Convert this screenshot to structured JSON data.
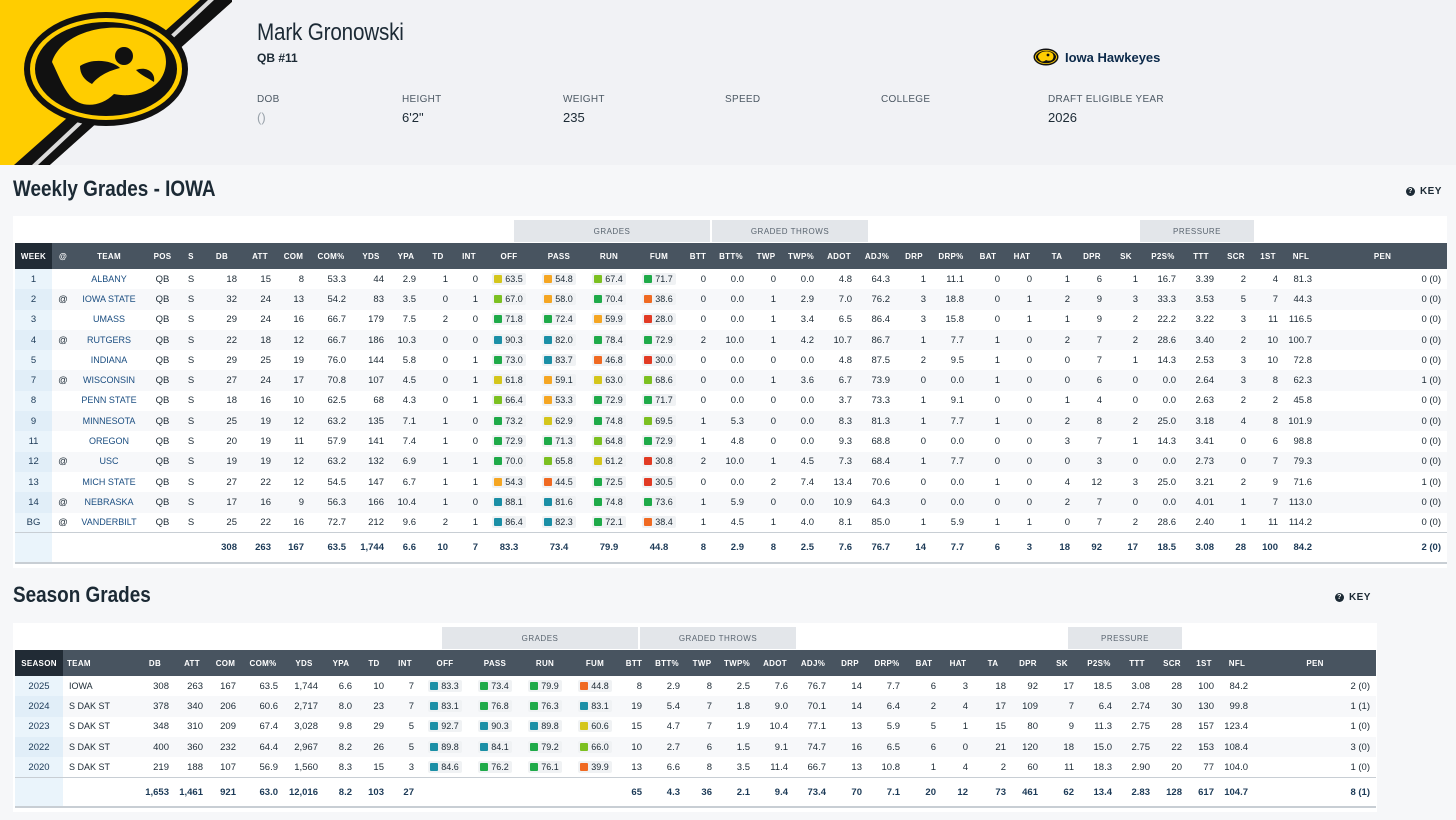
{
  "player": {
    "name": "Mark Gronowski",
    "position": "QB #11",
    "team": "Iowa Hawkeyes",
    "bio": [
      {
        "label": "DOB",
        "value": "()"
      },
      {
        "label": "HEIGHT",
        "value": "6'2\""
      },
      {
        "label": "WEIGHT",
        "value": "235"
      },
      {
        "label": "SPEED",
        "value": ""
      },
      {
        "label": "COLLEGE",
        "value": ""
      },
      {
        "label": "DRAFT ELIGIBLE YEAR",
        "value": "2026"
      }
    ]
  },
  "colors": {
    "brand_yellow": "#ffcd00",
    "brand_black": "#111111",
    "header_row": "#485460",
    "grade_elite": "#1b8fa6",
    "grade_high": "#1faa49",
    "grade_good": "#7cc021",
    "grade_avg": "#d4c61c",
    "grade_below": "#f5a623",
    "grade_low": "#f06a22",
    "grade_poor": "#e23b24"
  },
  "weekly": {
    "title": "Weekly Grades - IOWA",
    "key_label": "KEY",
    "groups": [
      "GRADES",
      "GRADED THROWS",
      "PRESSURE"
    ],
    "columns": [
      "WEEK",
      "@",
      "TEAM",
      "POS",
      "S",
      "DB",
      "ATT",
      "COM",
      "COM%",
      "YDS",
      "YPA",
      "TD",
      "INT",
      "OFF",
      "PASS",
      "RUN",
      "FUM",
      "BTT",
      "BTT%",
      "TWP",
      "TWP%",
      "ADOT",
      "ADJ%",
      "DRP",
      "DRP%",
      "BAT",
      "HAT",
      "TA",
      "DPR",
      "SK",
      "P2S%",
      "TTT",
      "SCR",
      "1ST",
      "NFL",
      "PEN"
    ],
    "rows": [
      [
        "1",
        "",
        "ALBANY",
        "QB",
        "S",
        "18",
        "15",
        "8",
        "53.3",
        "44",
        "2.9",
        "1",
        "0",
        "63.5",
        "54.8",
        "67.4",
        "71.7",
        "0",
        "0.0",
        "0",
        "0.0",
        "4.8",
        "64.3",
        "1",
        "11.1",
        "0",
        "0",
        "1",
        "6",
        "1",
        "16.7",
        "3.39",
        "2",
        "4",
        "81.3",
        "0 (0)"
      ],
      [
        "2",
        "@",
        "IOWA STATE",
        "QB",
        "S",
        "32",
        "24",
        "13",
        "54.2",
        "83",
        "3.5",
        "0",
        "1",
        "67.0",
        "58.0",
        "70.4",
        "38.6",
        "0",
        "0.0",
        "1",
        "2.9",
        "7.0",
        "76.2",
        "3",
        "18.8",
        "0",
        "1",
        "2",
        "9",
        "3",
        "33.3",
        "3.53",
        "5",
        "7",
        "44.3",
        "0 (0)"
      ],
      [
        "3",
        "",
        "UMASS",
        "QB",
        "S",
        "29",
        "24",
        "16",
        "66.7",
        "179",
        "7.5",
        "2",
        "0",
        "71.8",
        "72.4",
        "59.9",
        "28.0",
        "0",
        "0.0",
        "1",
        "3.4",
        "6.5",
        "86.4",
        "3",
        "15.8",
        "0",
        "1",
        "1",
        "9",
        "2",
        "22.2",
        "3.22",
        "3",
        "11",
        "116.5",
        "0 (0)"
      ],
      [
        "4",
        "@",
        "RUTGERS",
        "QB",
        "S",
        "22",
        "18",
        "12",
        "66.7",
        "186",
        "10.3",
        "0",
        "0",
        "90.3",
        "82.0",
        "78.4",
        "72.9",
        "2",
        "10.0",
        "1",
        "4.2",
        "10.7",
        "86.7",
        "1",
        "7.7",
        "1",
        "0",
        "2",
        "7",
        "2",
        "28.6",
        "3.40",
        "2",
        "10",
        "100.7",
        "0 (0)"
      ],
      [
        "5",
        "",
        "INDIANA",
        "QB",
        "S",
        "29",
        "25",
        "19",
        "76.0",
        "144",
        "5.8",
        "0",
        "1",
        "73.0",
        "83.7",
        "46.8",
        "30.0",
        "0",
        "0.0",
        "0",
        "0.0",
        "4.8",
        "87.5",
        "2",
        "9.5",
        "1",
        "0",
        "0",
        "7",
        "1",
        "14.3",
        "2.53",
        "3",
        "10",
        "72.8",
        "0 (0)"
      ],
      [
        "7",
        "@",
        "WISCONSIN",
        "QB",
        "S",
        "27",
        "24",
        "17",
        "70.8",
        "107",
        "4.5",
        "0",
        "1",
        "61.8",
        "59.1",
        "63.0",
        "68.6",
        "0",
        "0.0",
        "1",
        "3.6",
        "6.7",
        "73.9",
        "0",
        "0.0",
        "1",
        "0",
        "0",
        "6",
        "0",
        "0.0",
        "2.64",
        "3",
        "8",
        "62.3",
        "1 (0)"
      ],
      [
        "8",
        "",
        "PENN STATE",
        "QB",
        "S",
        "18",
        "16",
        "10",
        "62.5",
        "68",
        "4.3",
        "0",
        "1",
        "66.4",
        "53.3",
        "72.9",
        "71.7",
        "0",
        "0.0",
        "0",
        "0.0",
        "3.7",
        "73.3",
        "1",
        "9.1",
        "0",
        "0",
        "1",
        "4",
        "0",
        "0.0",
        "2.63",
        "2",
        "2",
        "45.8",
        "0 (0)"
      ],
      [
        "9",
        "",
        "MINNESOTA",
        "QB",
        "S",
        "25",
        "19",
        "12",
        "63.2",
        "135",
        "7.1",
        "1",
        "0",
        "73.2",
        "62.9",
        "74.8",
        "69.5",
        "1",
        "5.3",
        "0",
        "0.0",
        "8.3",
        "81.3",
        "1",
        "7.7",
        "1",
        "0",
        "2",
        "8",
        "2",
        "25.0",
        "3.18",
        "4",
        "8",
        "101.9",
        "0 (0)"
      ],
      [
        "11",
        "",
        "OREGON",
        "QB",
        "S",
        "20",
        "19",
        "11",
        "57.9",
        "141",
        "7.4",
        "1",
        "0",
        "72.9",
        "71.3",
        "64.8",
        "72.9",
        "1",
        "4.8",
        "0",
        "0.0",
        "9.3",
        "68.8",
        "0",
        "0.0",
        "0",
        "0",
        "3",
        "7",
        "1",
        "14.3",
        "3.41",
        "0",
        "6",
        "98.8",
        "0 (0)"
      ],
      [
        "12",
        "@",
        "USC",
        "QB",
        "S",
        "19",
        "19",
        "12",
        "63.2",
        "132",
        "6.9",
        "1",
        "1",
        "70.0",
        "65.8",
        "61.2",
        "30.8",
        "2",
        "10.0",
        "1",
        "4.5",
        "7.3",
        "68.4",
        "1",
        "7.7",
        "0",
        "0",
        "0",
        "3",
        "0",
        "0.0",
        "2.73",
        "0",
        "7",
        "79.3",
        "0 (0)"
      ],
      [
        "13",
        "",
        "MICH STATE",
        "QB",
        "S",
        "27",
        "22",
        "12",
        "54.5",
        "147",
        "6.7",
        "1",
        "1",
        "54.3",
        "44.5",
        "72.5",
        "30.5",
        "0",
        "0.0",
        "2",
        "7.4",
        "13.4",
        "70.6",
        "0",
        "0.0",
        "1",
        "0",
        "4",
        "12",
        "3",
        "25.0",
        "3.21",
        "2",
        "9",
        "71.6",
        "1 (0)"
      ],
      [
        "14",
        "@",
        "NEBRASKA",
        "QB",
        "S",
        "17",
        "16",
        "9",
        "56.3",
        "166",
        "10.4",
        "1",
        "0",
        "88.1",
        "81.6",
        "74.8",
        "73.6",
        "1",
        "5.9",
        "0",
        "0.0",
        "10.9",
        "64.3",
        "0",
        "0.0",
        "0",
        "0",
        "2",
        "7",
        "0",
        "0.0",
        "4.01",
        "1",
        "7",
        "113.0",
        "0 (0)"
      ],
      [
        "BG",
        "@",
        "VANDERBILT",
        "QB",
        "S",
        "25",
        "22",
        "16",
        "72.7",
        "212",
        "9.6",
        "2",
        "1",
        "86.4",
        "82.3",
        "72.1",
        "38.4",
        "1",
        "4.5",
        "1",
        "4.0",
        "8.1",
        "85.0",
        "1",
        "5.9",
        "1",
        "1",
        "0",
        "7",
        "2",
        "28.6",
        "2.40",
        "1",
        "11",
        "114.2",
        "0 (0)"
      ]
    ],
    "totals": [
      "",
      "",
      "",
      "",
      "",
      "308",
      "263",
      "167",
      "63.5",
      "1,744",
      "6.6",
      "10",
      "7",
      "83.3",
      "73.4",
      "79.9",
      "44.8",
      "8",
      "2.9",
      "8",
      "2.5",
      "7.6",
      "76.7",
      "14",
      "7.7",
      "6",
      "3",
      "18",
      "92",
      "17",
      "18.5",
      "3.08",
      "28",
      "100",
      "84.2",
      "2 (0)"
    ]
  },
  "season": {
    "title": "Season Grades",
    "key_label": "KEY",
    "groups": [
      "GRADES",
      "GRADED THROWS",
      "PRESSURE"
    ],
    "columns": [
      "SEASON",
      "TEAM",
      "DB",
      "ATT",
      "COM",
      "COM%",
      "YDS",
      "YPA",
      "TD",
      "INT",
      "OFF",
      "PASS",
      "RUN",
      "FUM",
      "BTT",
      "BTT%",
      "TWP",
      "TWP%",
      "ADOT",
      "ADJ%",
      "DRP",
      "DRP%",
      "BAT",
      "HAT",
      "TA",
      "DPR",
      "SK",
      "P2S%",
      "TTT",
      "SCR",
      "1ST",
      "NFL",
      "PEN"
    ],
    "rows": [
      [
        "2025",
        "IOWA",
        "308",
        "263",
        "167",
        "63.5",
        "1,744",
        "6.6",
        "10",
        "7",
        "83.3",
        "73.4",
        "79.9",
        "44.8",
        "8",
        "2.9",
        "8",
        "2.5",
        "7.6",
        "76.7",
        "14",
        "7.7",
        "6",
        "3",
        "18",
        "92",
        "17",
        "18.5",
        "3.08",
        "28",
        "100",
        "84.2",
        "2 (0)"
      ],
      [
        "2024",
        "S DAK ST",
        "378",
        "340",
        "206",
        "60.6",
        "2,717",
        "8.0",
        "23",
        "7",
        "83.1",
        "76.8",
        "76.3",
        "83.1",
        "19",
        "5.4",
        "7",
        "1.8",
        "9.0",
        "70.1",
        "14",
        "6.4",
        "2",
        "4",
        "17",
        "109",
        "7",
        "6.4",
        "2.74",
        "30",
        "130",
        "99.8",
        "1 (1)"
      ],
      [
        "2023",
        "S DAK ST",
        "348",
        "310",
        "209",
        "67.4",
        "3,028",
        "9.8",
        "29",
        "5",
        "92.7",
        "90.3",
        "89.8",
        "60.6",
        "15",
        "4.7",
        "7",
        "1.9",
        "10.4",
        "77.1",
        "13",
        "5.9",
        "5",
        "1",
        "15",
        "80",
        "9",
        "11.3",
        "2.75",
        "28",
        "157",
        "123.4",
        "1 (0)"
      ],
      [
        "2022",
        "S DAK ST",
        "400",
        "360",
        "232",
        "64.4",
        "2,967",
        "8.2",
        "26",
        "5",
        "89.8",
        "84.1",
        "79.2",
        "66.0",
        "10",
        "2.7",
        "6",
        "1.5",
        "9.1",
        "74.7",
        "16",
        "6.5",
        "6",
        "0",
        "21",
        "120",
        "18",
        "15.0",
        "2.75",
        "22",
        "153",
        "108.4",
        "3 (0)"
      ],
      [
        "2020",
        "S DAK ST",
        "219",
        "188",
        "107",
        "56.9",
        "1,560",
        "8.3",
        "15",
        "3",
        "84.6",
        "76.2",
        "76.1",
        "39.9",
        "13",
        "6.6",
        "8",
        "3.5",
        "11.4",
        "66.7",
        "13",
        "10.8",
        "1",
        "4",
        "2",
        "60",
        "11",
        "18.3",
        "2.90",
        "20",
        "77",
        "104.0",
        "1 (0)"
      ]
    ],
    "totals": [
      "",
      "",
      "1,653",
      "1,461",
      "921",
      "63.0",
      "12,016",
      "8.2",
      "103",
      "27",
      "",
      "",
      "",
      "",
      "65",
      "4.3",
      "36",
      "2.1",
      "9.4",
      "73.4",
      "70",
      "7.1",
      "20",
      "12",
      "73",
      "461",
      "62",
      "13.4",
      "2.83",
      "128",
      "617",
      "104.7",
      "8 (1)"
    ]
  }
}
